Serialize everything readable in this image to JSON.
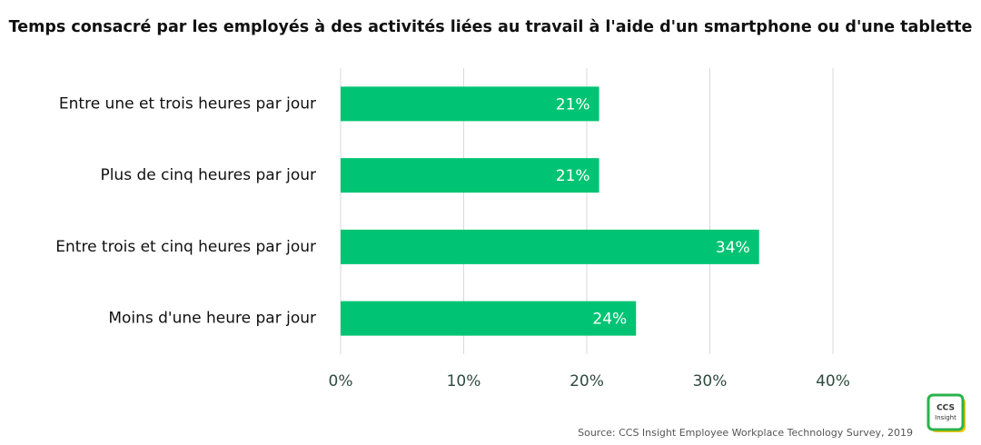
{
  "chart_data": {
    "type": "barh",
    "title": "Temps consacré par les employés à des activités liées au travail à l'aide d'un smartphone ou d'une tablette",
    "categories": [
      "Entre une et trois heures par jour",
      "Plus de cinq heures par jour",
      "Entre trois et cinq heures par jour",
      "Moins d'une heure par jour"
    ],
    "values": [
      21,
      21,
      34,
      24
    ],
    "value_labels": [
      "21%",
      "21%",
      "34%",
      "24%"
    ],
    "color": "#00c473",
    "xlim": [
      0,
      40
    ],
    "xticks": [
      {
        "value": 0,
        "label": "0%"
      },
      {
        "value": 10,
        "label": "10%"
      },
      {
        "value": 20,
        "label": "20%"
      },
      {
        "value": 30,
        "label": "30%"
      },
      {
        "value": 40,
        "label": "40%"
      }
    ],
    "grid": true,
    "source": "Source: CCS Insight Employee Workplace Technology Survey, 2019",
    "logo": {
      "line1": "CCS",
      "line2": "Insight"
    }
  }
}
